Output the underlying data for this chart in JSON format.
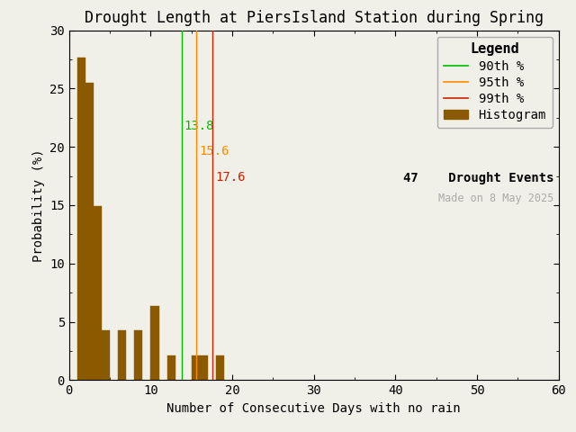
{
  "title": "Drought Length at PiersIsland Station during Spring",
  "xlabel": "Number of Consecutive Days with no rain",
  "ylabel": "Probability (%)",
  "xlim": [
    0,
    60
  ],
  "ylim": [
    0,
    30
  ],
  "xticks": [
    0,
    10,
    20,
    30,
    40,
    50,
    60
  ],
  "yticks": [
    0,
    5,
    10,
    15,
    20,
    25,
    30
  ],
  "bar_color": "#8B5A00",
  "bar_edgecolor": "#8B5A00",
  "background_color": "#f0f0e8",
  "hist_bins": [
    1,
    2,
    3,
    4,
    5,
    6,
    7,
    8,
    9,
    10,
    11,
    12,
    13,
    14,
    15,
    16,
    17,
    18,
    19,
    20
  ],
  "bar_heights": [
    27.66,
    25.53,
    14.89,
    4.26,
    0.0,
    4.26,
    0.0,
    4.26,
    0.0,
    6.38,
    0.0,
    2.13,
    0.0,
    0.0,
    2.13,
    2.13,
    0.0,
    2.13,
    0.0,
    0.0
  ],
  "percentile_90": 13.8,
  "percentile_95": 15.6,
  "percentile_99": 17.6,
  "color_90": "#00bb00",
  "color_95": "#ff8c00",
  "color_99": "#cc2200",
  "drought_events": 47,
  "made_on": "Made on 8 May 2025",
  "legend_title": "Legend",
  "title_fontsize": 12,
  "axis_fontsize": 10,
  "tick_fontsize": 10,
  "legend_fontsize": 10,
  "label_90": "13.8",
  "label_95": "15.6",
  "label_99": "17.6"
}
